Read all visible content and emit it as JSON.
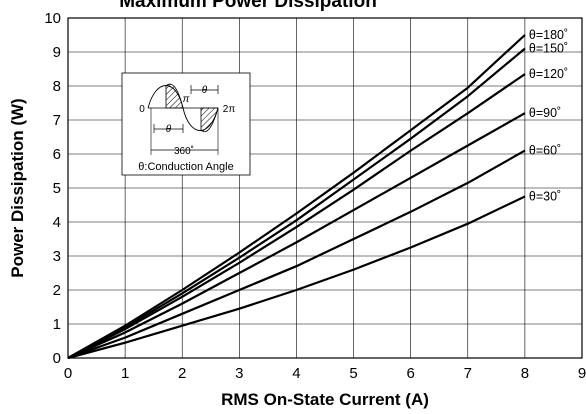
{
  "chart_data": {
    "type": "line",
    "title": "Maximum Power Dissipation",
    "xlabel": "RMS On-State Current (A)",
    "ylabel": "Power Dissipation (W)",
    "xlim": [
      0,
      9
    ],
    "ylim": [
      0,
      10
    ],
    "xticks": [
      "0",
      "1",
      "2",
      "3",
      "4",
      "5",
      "6",
      "7",
      "8",
      "9"
    ],
    "yticks": [
      "0",
      "1",
      "2",
      "3",
      "4",
      "5",
      "6",
      "7",
      "8",
      "9",
      "10"
    ],
    "grid": true,
    "series": [
      {
        "name": "θ=180˚",
        "x": [
          0,
          1,
          2,
          3,
          4,
          5,
          6,
          7,
          8
        ],
        "y": [
          0,
          0.95,
          2.0,
          3.1,
          4.25,
          5.45,
          6.7,
          7.95,
          9.5
        ]
      },
      {
        "name": "θ=150˚",
        "x": [
          0,
          1,
          2,
          3,
          4,
          5,
          6,
          7,
          8
        ],
        "y": [
          0,
          0.9,
          1.9,
          2.95,
          4.05,
          5.25,
          6.45,
          7.7,
          9.1
        ]
      },
      {
        "name": "θ=120˚",
        "x": [
          0,
          1,
          2,
          3,
          4,
          5,
          6,
          7,
          8
        ],
        "y": [
          0,
          0.85,
          1.8,
          2.8,
          3.85,
          4.95,
          6.1,
          7.2,
          8.35
        ]
      },
      {
        "name": "θ=90˚",
        "x": [
          0,
          1,
          2,
          3,
          4,
          5,
          6,
          7,
          8
        ],
        "y": [
          0,
          0.75,
          1.6,
          2.5,
          3.4,
          4.35,
          5.3,
          6.25,
          7.2
        ]
      },
      {
        "name": "θ=60˚",
        "x": [
          0,
          1,
          2,
          3,
          4,
          5,
          6,
          7,
          8
        ],
        "y": [
          0,
          0.6,
          1.3,
          2.0,
          2.7,
          3.5,
          4.3,
          5.15,
          6.1
        ]
      },
      {
        "name": "θ=30˚",
        "x": [
          0,
          1,
          2,
          3,
          4,
          5,
          6,
          7,
          8
        ],
        "y": [
          0,
          0.45,
          0.95,
          1.45,
          2.0,
          2.6,
          3.25,
          3.95,
          4.75
        ]
      }
    ],
    "inset": {
      "caption": "θ:Conduction Angle",
      "labels": {
        "zero": "0",
        "pi": "π",
        "two_pi": "2π",
        "theta_top": "θ",
        "theta_bottom": "θ",
        "deg360": "360˚"
      }
    }
  }
}
